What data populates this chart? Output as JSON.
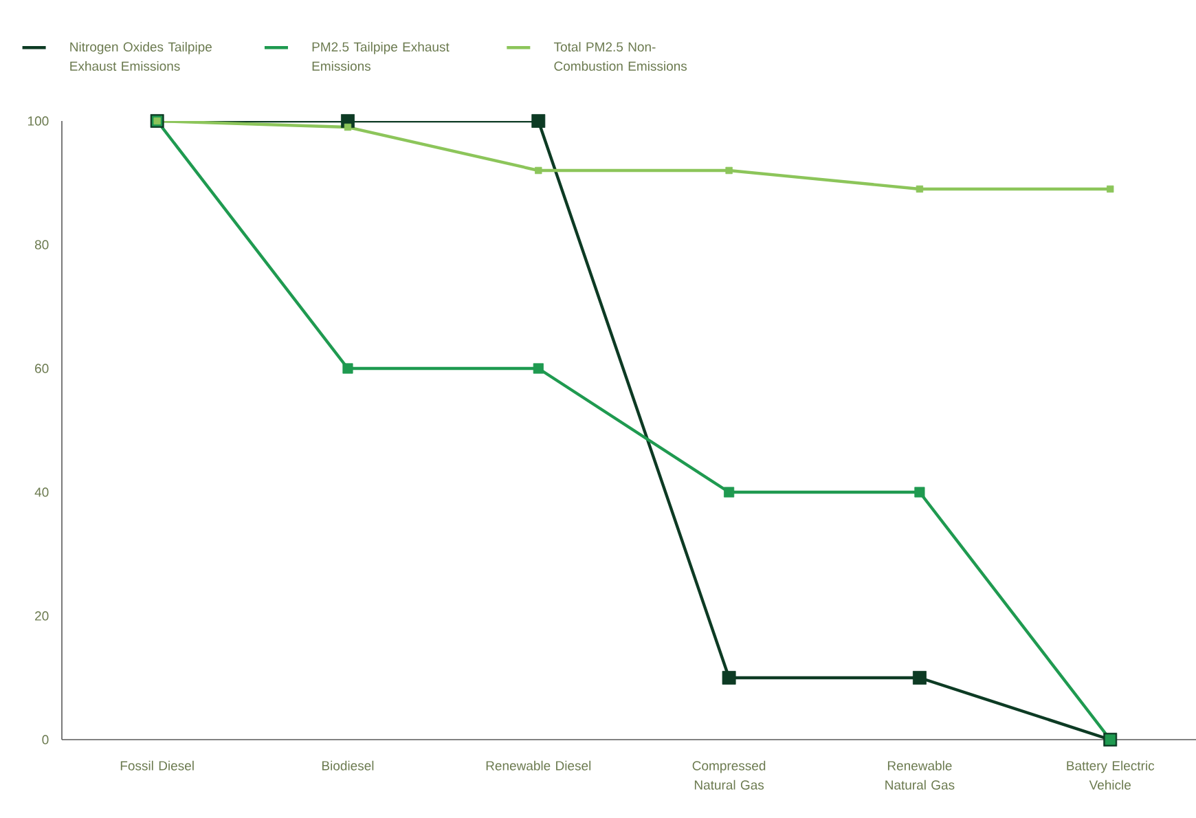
{
  "chart_data": {
    "type": "line",
    "categories": [
      "Fossil Diesel",
      "Biodiesel",
      "Renewable Diesel",
      "Compressed Natural Gas",
      "Renewable Natural Gas",
      "Battery Electric Vehicle"
    ],
    "series": [
      {
        "name": "Nitrogen Oxides Tailpipe Exhaust Emissions",
        "color": "#0d3b24",
        "values": [
          100,
          100,
          100,
          10,
          10,
          0
        ]
      },
      {
        "name": "PM2.5 Tailpipe Exhaust Emissions",
        "color": "#1f9a50",
        "values": [
          100,
          60,
          60,
          40,
          40,
          0
        ]
      },
      {
        "name": "Total PM2.5 Non-Combustion Emissions",
        "color": "#8cc55a",
        "values": [
          100,
          99,
          92,
          92,
          89,
          89
        ]
      }
    ],
    "ylim": [
      0,
      100
    ],
    "yticks": [
      0,
      20,
      40,
      60,
      80,
      100
    ],
    "grid": false,
    "legend": "top",
    "marker": "square",
    "line_style": "solid"
  }
}
